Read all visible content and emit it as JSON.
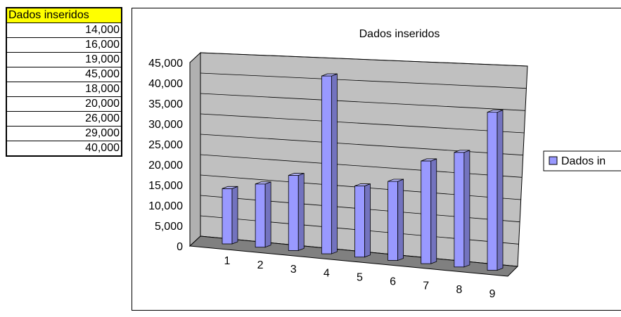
{
  "sheet": {
    "header": "Dados inseridos",
    "values": [
      "14,000",
      "16,000",
      "19,000",
      "45,000",
      "18,000",
      "20,000",
      "26,000",
      "29,000",
      "40,000"
    ]
  },
  "colors": {
    "bar": "#9999ff",
    "header_fill": "#ffff00",
    "floor": "#808080",
    "wall": "#c0c0c0"
  },
  "chart_data": {
    "type": "bar",
    "title": "Dados inseridos",
    "categories": [
      "1",
      "2",
      "3",
      "4",
      "5",
      "6",
      "7",
      "8",
      "9"
    ],
    "series": [
      {
        "name": "Dados inseridos",
        "values": [
          14000,
          16000,
          19000,
          45000,
          18000,
          20000,
          26000,
          29000,
          40000
        ]
      }
    ],
    "ylim": [
      0,
      45000
    ],
    "yticks": [
      "0",
      "5,000",
      "10,000",
      "15,000",
      "20,000",
      "25,000",
      "30,000",
      "35,000",
      "40,000",
      "45,000"
    ],
    "legend_label": "Dados in",
    "legend_position": "right",
    "grid": true
  }
}
